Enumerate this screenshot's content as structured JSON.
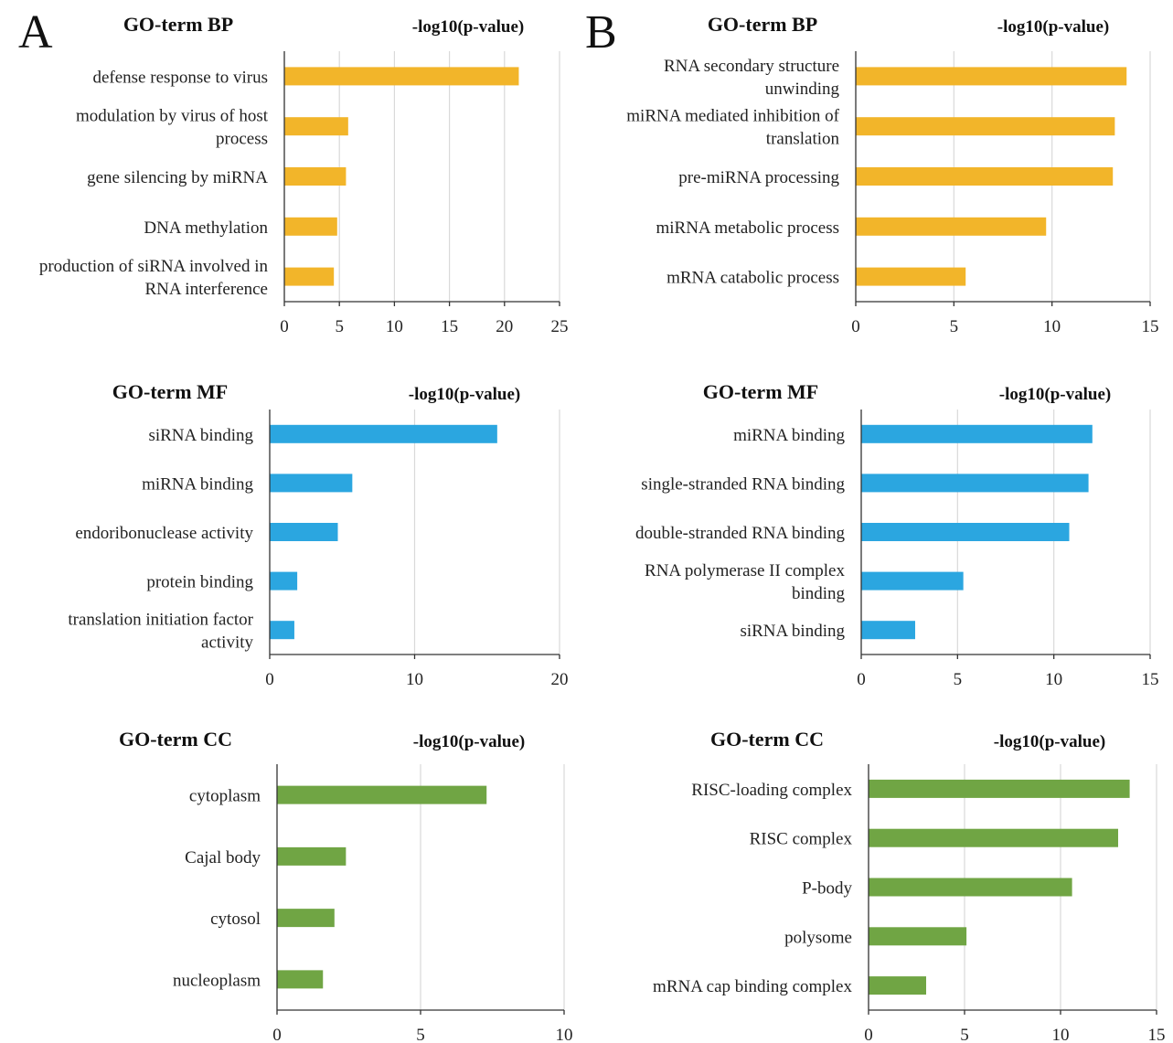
{
  "panels": [
    {
      "letter": "A"
    },
    {
      "letter": "B"
    }
  ],
  "colors": {
    "BP": "#F2B52A",
    "MF": "#2BA6E0",
    "CC": "#70A544"
  },
  "chart_data": [
    {
      "panel": "A",
      "type": "bar",
      "orientation": "horizontal",
      "title": "GO-term BP",
      "xlabel": "-log10(p-value)",
      "categories": [
        "defense response to virus",
        "modulation by virus of host process",
        "gene silencing by miRNA",
        "DNA methylation",
        "production of siRNA involved in RNA interference"
      ],
      "category_lines": [
        [
          "defense response to virus"
        ],
        [
          "modulation by virus of host",
          "process"
        ],
        [
          "gene silencing by miRNA"
        ],
        [
          "DNA methylation"
        ],
        [
          "production of siRNA involved in",
          "RNA interference"
        ]
      ],
      "values": [
        21.3,
        5.8,
        5.6,
        4.8,
        4.5
      ],
      "xlim": [
        0,
        25
      ],
      "xticks": [
        0,
        5,
        10,
        15,
        20,
        25
      ],
      "grid": true,
      "color_key": "BP"
    },
    {
      "panel": "A",
      "type": "bar",
      "orientation": "horizontal",
      "title": "GO-term MF",
      "xlabel": "-log10(p-value)",
      "categories": [
        "siRNA binding",
        "miRNA binding",
        "endoribonuclease activity",
        "protein binding",
        "translation initiation factor activity"
      ],
      "category_lines": [
        [
          "siRNA binding"
        ],
        [
          "miRNA binding"
        ],
        [
          "endoribonuclease activity"
        ],
        [
          "protein binding"
        ],
        [
          "translation initiation factor",
          "activity"
        ]
      ],
      "values": [
        15.7,
        5.7,
        4.7,
        1.9,
        1.7
      ],
      "xlim": [
        0,
        20
      ],
      "xticks": [
        0,
        10,
        20
      ],
      "grid": true,
      "color_key": "MF"
    },
    {
      "panel": "A",
      "type": "bar",
      "orientation": "horizontal",
      "title": "GO-term CC",
      "xlabel": "-log10(p-value)",
      "categories": [
        "cytoplasm",
        "Cajal body",
        "cytosol",
        "nucleoplasm"
      ],
      "category_lines": [
        [
          "cytoplasm"
        ],
        [
          "Cajal body"
        ],
        [
          "cytosol"
        ],
        [
          "nucleoplasm"
        ]
      ],
      "values": [
        7.3,
        2.4,
        2.0,
        1.6
      ],
      "xlim": [
        0,
        10
      ],
      "xticks": [
        0,
        5,
        10
      ],
      "grid": true,
      "color_key": "CC"
    },
    {
      "panel": "B",
      "type": "bar",
      "orientation": "horizontal",
      "title": "GO-term BP",
      "xlabel": "-log10(p-value)",
      "categories": [
        "RNA secondary structure unwinding",
        "miRNA mediated inhibition of translation",
        "pre-miRNA processing",
        "miRNA metabolic process",
        "mRNA catabolic process"
      ],
      "category_lines": [
        [
          "RNA secondary structure",
          "unwinding"
        ],
        [
          "miRNA mediated inhibition of",
          "translation"
        ],
        [
          "pre-miRNA processing"
        ],
        [
          "miRNA metabolic process"
        ],
        [
          "mRNA catabolic process"
        ]
      ],
      "values": [
        13.8,
        13.2,
        13.1,
        9.7,
        5.6
      ],
      "xlim": [
        0,
        15
      ],
      "xticks": [
        0,
        5,
        10,
        15
      ],
      "grid": true,
      "color_key": "BP"
    },
    {
      "panel": "B",
      "type": "bar",
      "orientation": "horizontal",
      "title": "GO-term MF",
      "xlabel": "-log10(p-value)",
      "categories": [
        "miRNA binding",
        "single-stranded RNA binding",
        "double-stranded RNA binding",
        "RNA polymerase II complex binding",
        "siRNA binding"
      ],
      "category_lines": [
        [
          "miRNA binding"
        ],
        [
          "single-stranded RNA binding"
        ],
        [
          "double-stranded RNA binding"
        ],
        [
          "RNA polymerase II complex",
          "binding"
        ],
        [
          "siRNA binding"
        ]
      ],
      "values": [
        12.0,
        11.8,
        10.8,
        5.3,
        2.8
      ],
      "xlim": [
        0,
        15
      ],
      "xticks": [
        0,
        5,
        10,
        15
      ],
      "grid": true,
      "color_key": "MF"
    },
    {
      "panel": "B",
      "type": "bar",
      "orientation": "horizontal",
      "title": "GO-term CC",
      "xlabel": "-log10(p-value)",
      "categories": [
        "RISC-loading complex",
        "RISC complex",
        "P-body",
        "polysome",
        "mRNA cap binding complex"
      ],
      "category_lines": [
        [
          "RISC-loading complex"
        ],
        [
          "RISC complex"
        ],
        [
          "P-body"
        ],
        [
          "polysome"
        ],
        [
          "mRNA cap binding complex"
        ]
      ],
      "values": [
        13.6,
        13.0,
        10.6,
        5.1,
        3.0
      ],
      "xlim": [
        0,
        15
      ],
      "xticks": [
        0,
        5,
        10,
        15
      ],
      "grid": true,
      "color_key": "CC"
    }
  ]
}
